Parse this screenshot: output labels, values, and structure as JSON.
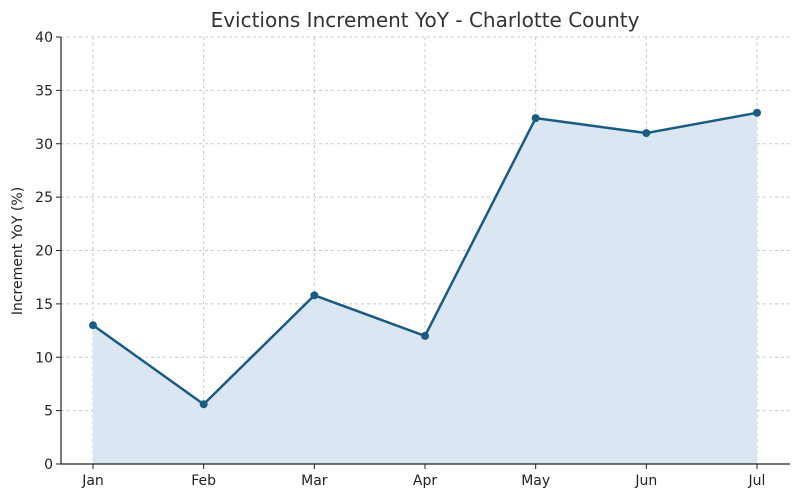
{
  "chart_data": {
    "type": "line",
    "title": "Evictions Increment YoY - Charlotte County",
    "xlabel": "",
    "ylabel": "Increment YoY (%)",
    "categories": [
      "Jan",
      "Feb",
      "Mar",
      "Apr",
      "May",
      "Jun",
      "Jul"
    ],
    "series": [
      {
        "values": [
          13.0,
          5.6,
          15.8,
          12.0,
          32.4,
          31.0,
          32.9
        ]
      }
    ],
    "ylim": [
      0,
      40
    ],
    "yticks": [
      0,
      5,
      10,
      15,
      20,
      25,
      30,
      35,
      40
    ],
    "grid": true,
    "filled_area": true,
    "markers": true,
    "colors": {
      "line": "#1a5b82",
      "fill": "#dae6f1",
      "marker": "#1a5b82"
    }
  }
}
